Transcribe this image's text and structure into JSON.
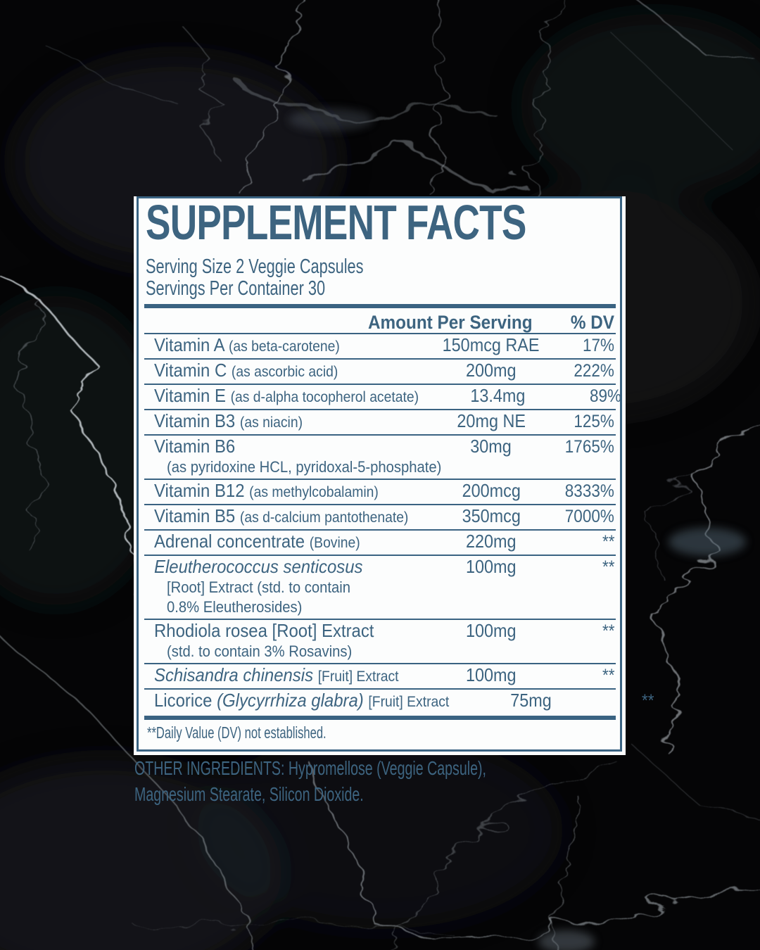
{
  "colors": {
    "text_blue": "#3d6480",
    "rule_blue": "#3a6382",
    "panel_bg": "#fcfdfd",
    "background": "#050506"
  },
  "label": {
    "title": "SUPPLEMENT FACTS",
    "serving_size": "Serving Size 2 Veggie Capsules",
    "servings_per_container": "Servings Per Container 30",
    "columns": {
      "amount": "Amount Per Serving",
      "dv": "% DV"
    },
    "rows": [
      {
        "name": [
          [
            "plain",
            "Vitamin A "
          ],
          [
            "small",
            "(as beta-carotene)"
          ]
        ],
        "amount": "150mcg RAE",
        "dv": "17%"
      },
      {
        "name": [
          [
            "plain",
            "Vitamin C "
          ],
          [
            "small",
            "(as ascorbic acid)"
          ]
        ],
        "amount": "200mg",
        "dv": "222%"
      },
      {
        "name": [
          [
            "plain",
            "Vitamin E "
          ],
          [
            "small",
            "(as d-alpha tocopherol acetate)"
          ]
        ],
        "amount": "13.4mg",
        "dv": "89%"
      },
      {
        "name": [
          [
            "plain",
            "Vitamin B3 "
          ],
          [
            "small",
            "(as niacin)"
          ]
        ],
        "amount": "20mg NE",
        "dv": "125%"
      },
      {
        "name": [
          [
            "plain",
            "Vitamin B6"
          ]
        ],
        "sub": [
          "(as pyridoxine HCL, pyridoxal-5-phosphate)"
        ],
        "amount": "30mg",
        "dv": "1765%"
      },
      {
        "name": [
          [
            "plain",
            "Vitamin B12 "
          ],
          [
            "small",
            "(as methylcobalamin)"
          ]
        ],
        "amount": "200mcg",
        "dv": "8333%"
      },
      {
        "name": [
          [
            "plain",
            "Vitamin B5 "
          ],
          [
            "small",
            "(as d-calcium pantothenate)"
          ]
        ],
        "amount": "350mcg",
        "dv": "7000%"
      },
      {
        "name": [
          [
            "plain",
            "Adrenal concentrate "
          ],
          [
            "small",
            "(Bovine)"
          ]
        ],
        "amount": "220mg",
        "dv": "**"
      },
      {
        "name": [
          [
            "italic",
            "Eleutherococcus senticosus"
          ]
        ],
        "sub": [
          "[Root] Extract (std. to contain",
          "0.8% Eleutherosides)"
        ],
        "amount": "100mg",
        "dv": "**"
      },
      {
        "name": [
          [
            "plain",
            "Rhodiola rosea [Root] Extract"
          ]
        ],
        "sub": [
          "(std. to contain 3% Rosavins)"
        ],
        "amount": "100mg",
        "dv": "**"
      },
      {
        "name": [
          [
            "italic",
            "Schisandra chinensis "
          ],
          [
            "small",
            "[Fruit] Extract"
          ]
        ],
        "amount": "100mg",
        "dv": "**"
      },
      {
        "name": [
          [
            "plain",
            "Licorice "
          ],
          [
            "italic",
            "(Glycyrrhiza glabra) "
          ],
          [
            "small",
            "[Fruit] Extract"
          ]
        ],
        "amount": "75mg",
        "dv": "**"
      }
    ],
    "footnote": "**Daily Value (DV) not established.",
    "other_ingredients_line1": "OTHER INGREDIENTS: Hypromellose (Veggie Capsule),",
    "other_ingredients_line2": "Magnesium Stearate, Silicon Dioxide."
  }
}
